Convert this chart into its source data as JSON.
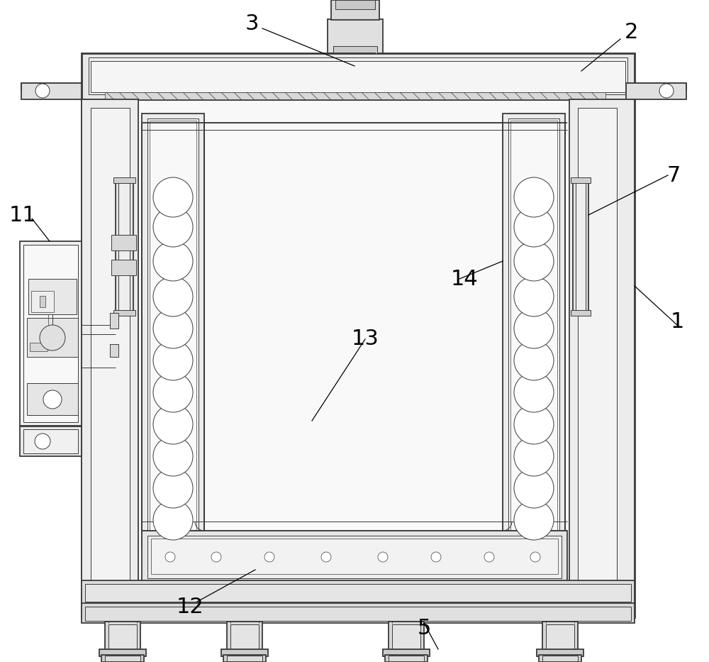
{
  "bg_color": "#ffffff",
  "lc": "#3a3a3a",
  "fig_width": 10.0,
  "fig_height": 9.33,
  "lw_thick": 2.0,
  "lw_main": 1.3,
  "lw_thin": 0.7,
  "lw_hair": 0.5,
  "fc_light": "#f0f0f0",
  "fc_mid": "#e0e0e0",
  "fc_dark": "#cccccc",
  "fc_white": "#ffffff",
  "label_fs": 22
}
